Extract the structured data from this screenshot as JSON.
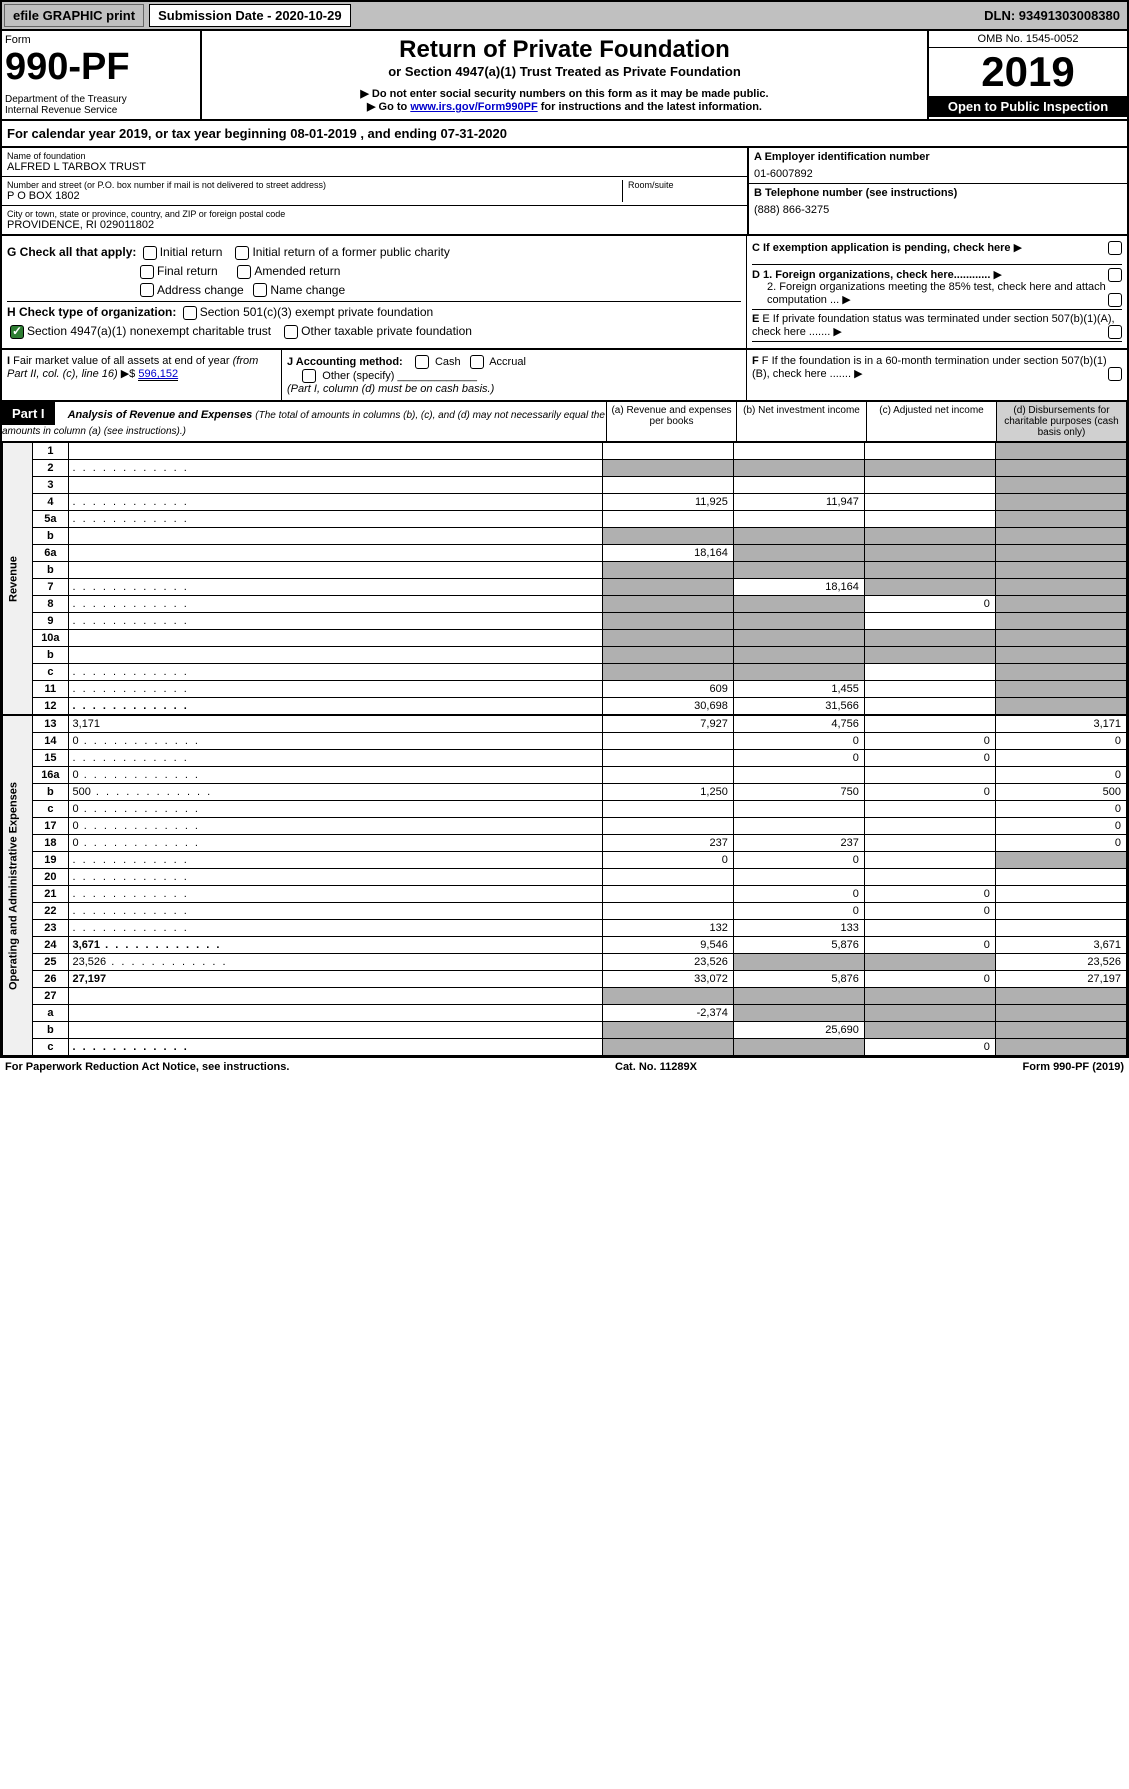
{
  "topbar": {
    "efile": "efile GRAPHIC print",
    "submission": "Submission Date - 2020-10-29",
    "dln": "DLN: 93491303008380"
  },
  "header": {
    "form_label": "Form",
    "form_number": "990-PF",
    "dept": "Department of the Treasury\nInternal Revenue Service",
    "title": "Return of Private Foundation",
    "subtitle": "or Section 4947(a)(1) Trust Treated as Private Foundation",
    "note1": "▶ Do not enter social security numbers on this form as it may be made public.",
    "note2_pre": "▶ Go to ",
    "note2_link": "www.irs.gov/Form990PF",
    "note2_post": " for instructions and the latest information.",
    "omb": "OMB No. 1545-0052",
    "year": "2019",
    "inspection": "Open to Public Inspection"
  },
  "cal_year": "For calendar year 2019, or tax year beginning 08-01-2019                          , and ending 07-31-2020",
  "info": {
    "name_label": "Name of foundation",
    "name": "ALFRED L TARBOX TRUST",
    "addr_label": "Number and street (or P.O. box number if mail is not delivered to street address)",
    "addr": "P O BOX 1802",
    "room_label": "Room/suite",
    "city_label": "City or town, state or province, country, and ZIP or foreign postal code",
    "city": "PROVIDENCE, RI  029011802",
    "ein_label": "A Employer identification number",
    "ein": "01-6007892",
    "tel_label": "B Telephone number (see instructions)",
    "tel": "(888) 866-3275",
    "c_label": "C If exemption application is pending, check here",
    "d1": "D 1. Foreign organizations, check here............",
    "d2": "2. Foreign organizations meeting the 85% test, check here and attach computation ...",
    "e": "E If private foundation status was terminated under section 507(b)(1)(A), check here .......",
    "f": "F If the foundation is in a 60-month termination under section 507(b)(1)(B), check here ......."
  },
  "g": {
    "label": "G Check all that apply:",
    "opts": [
      "Initial return",
      "Initial return of a former public charity",
      "Final return",
      "Amended return",
      "Address change",
      "Name change"
    ]
  },
  "h": {
    "label": "H Check type of organization:",
    "opt1": "Section 501(c)(3) exempt private foundation",
    "opt2": "Section 4947(a)(1) nonexempt charitable trust",
    "opt3": "Other taxable private foundation"
  },
  "i": {
    "label": "I Fair market value of all assets at end of year (from Part II, col. (c), line 16) ▶$",
    "value": "596,152"
  },
  "j": {
    "label": "J Accounting method:",
    "cash": "Cash",
    "accrual": "Accrual",
    "other": "Other (specify)",
    "note": "(Part I, column (d) must be on cash basis.)"
  },
  "part1": {
    "label": "Part I",
    "title": "Analysis of Revenue and Expenses",
    "subtitle": "(The total of amounts in columns (b), (c), and (d) may not necessarily equal the amounts in column (a) (see instructions).)",
    "col_a": "(a)   Revenue and expenses per books",
    "col_b": "(b)  Net investment income",
    "col_c": "(c)  Adjusted net income",
    "col_d": "(d)  Disbursements for charitable purposes (cash basis only)"
  },
  "sections": {
    "revenue": "Revenue",
    "expenses": "Operating and Administrative Expenses"
  },
  "lines": [
    {
      "n": "1",
      "d": "",
      "a": "",
      "b": "",
      "c": "",
      "dg": true
    },
    {
      "n": "2",
      "d": "",
      "a": "",
      "b": "",
      "c": "",
      "dots": true,
      "bg": true,
      "cg": true,
      "dg": true,
      "ag": true
    },
    {
      "n": "3",
      "d": "",
      "a": "",
      "b": "",
      "c": "",
      "dg": true
    },
    {
      "n": "4",
      "d": "",
      "a": "11,925",
      "b": "11,947",
      "c": "",
      "dg": true,
      "dots": true
    },
    {
      "n": "5a",
      "d": "",
      "a": "",
      "b": "",
      "c": "",
      "dg": true,
      "dots": true
    },
    {
      "n": "b",
      "d": "",
      "a": "",
      "b": "",
      "c": "",
      "ag": true,
      "bg": true,
      "cg": true,
      "dg": true
    },
    {
      "n": "6a",
      "d": "",
      "a": "18,164",
      "b": "",
      "c": "",
      "bg": true,
      "cg": true,
      "dg": true
    },
    {
      "n": "b",
      "d": "",
      "a": "",
      "b": "",
      "c": "",
      "ag": true,
      "bg": true,
      "cg": true,
      "dg": true
    },
    {
      "n": "7",
      "d": "",
      "a": "",
      "b": "18,164",
      "c": "",
      "ag": true,
      "cg": true,
      "dg": true,
      "dots": true
    },
    {
      "n": "8",
      "d": "",
      "a": "",
      "b": "",
      "c": "0",
      "ag": true,
      "bg": true,
      "dg": true,
      "dots": true
    },
    {
      "n": "9",
      "d": "",
      "a": "",
      "b": "",
      "c": "",
      "ag": true,
      "bg": true,
      "dg": true,
      "dots": true
    },
    {
      "n": "10a",
      "d": "",
      "a": "",
      "b": "",
      "c": "",
      "ag": true,
      "bg": true,
      "cg": true,
      "dg": true
    },
    {
      "n": "b",
      "d": "",
      "a": "",
      "b": "",
      "c": "",
      "ag": true,
      "bg": true,
      "cg": true,
      "dg": true
    },
    {
      "n": "c",
      "d": "",
      "a": "",
      "b": "",
      "c": "",
      "ag": true,
      "bg": true,
      "dg": true,
      "dots": true
    },
    {
      "n": "11",
      "d": "",
      "a": "609",
      "b": "1,455",
      "c": "",
      "dg": true,
      "dots": true
    },
    {
      "n": "12",
      "d": "",
      "a": "30,698",
      "b": "31,566",
      "c": "",
      "dg": true,
      "bold": true,
      "dots": true
    }
  ],
  "exp_lines": [
    {
      "n": "13",
      "d": "3,171",
      "a": "7,927",
      "b": "4,756",
      "c": ""
    },
    {
      "n": "14",
      "d": "0",
      "a": "",
      "b": "0",
      "c": "0",
      "dots": true
    },
    {
      "n": "15",
      "d": "",
      "a": "",
      "b": "0",
      "c": "0",
      "dots": true
    },
    {
      "n": "16a",
      "d": "0",
      "a": "",
      "b": "",
      "c": "",
      "dots": true
    },
    {
      "n": "b",
      "d": "500",
      "a": "1,250",
      "b": "750",
      "c": "0",
      "dots": true
    },
    {
      "n": "c",
      "d": "0",
      "a": "",
      "b": "",
      "c": "",
      "dots": true
    },
    {
      "n": "17",
      "d": "0",
      "a": "",
      "b": "",
      "c": "",
      "dots": true
    },
    {
      "n": "18",
      "d": "0",
      "a": "237",
      "b": "237",
      "c": "",
      "dots": true
    },
    {
      "n": "19",
      "d": "",
      "a": "0",
      "b": "0",
      "c": "",
      "dg": true,
      "dots": true
    },
    {
      "n": "20",
      "d": "",
      "a": "",
      "b": "",
      "c": "",
      "dots": true
    },
    {
      "n": "21",
      "d": "",
      "a": "",
      "b": "0",
      "c": "0",
      "dots": true
    },
    {
      "n": "22",
      "d": "",
      "a": "",
      "b": "0",
      "c": "0",
      "dots": true
    },
    {
      "n": "23",
      "d": "",
      "a": "132",
      "b": "133",
      "c": "",
      "dots": true
    },
    {
      "n": "24",
      "d": "3,671",
      "a": "9,546",
      "b": "5,876",
      "c": "0",
      "bold": true,
      "dots": true
    },
    {
      "n": "25",
      "d": "23,526",
      "a": "23,526",
      "b": "",
      "c": "",
      "bg": true,
      "cg": true,
      "dots": true
    },
    {
      "n": "26",
      "d": "27,197",
      "a": "33,072",
      "b": "5,876",
      "c": "0",
      "bold": true
    },
    {
      "n": "27",
      "d": "",
      "a": "",
      "b": "",
      "c": "",
      "ag": true,
      "bg": true,
      "cg": true,
      "dg": true
    },
    {
      "n": "a",
      "d": "",
      "a": "-2,374",
      "b": "",
      "c": "",
      "bg": true,
      "cg": true,
      "dg": true,
      "bold": true
    },
    {
      "n": "b",
      "d": "",
      "a": "",
      "b": "25,690",
      "c": "",
      "ag": true,
      "cg": true,
      "dg": true,
      "bold": true
    },
    {
      "n": "c",
      "d": "",
      "a": "",
      "b": "",
      "c": "0",
      "ag": true,
      "bg": true,
      "dg": true,
      "bold": true,
      "dots": true
    }
  ],
  "footer": {
    "left": "For Paperwork Reduction Act Notice, see instructions.",
    "mid": "Cat. No. 11289X",
    "right": "Form 990-PF (2019)"
  }
}
